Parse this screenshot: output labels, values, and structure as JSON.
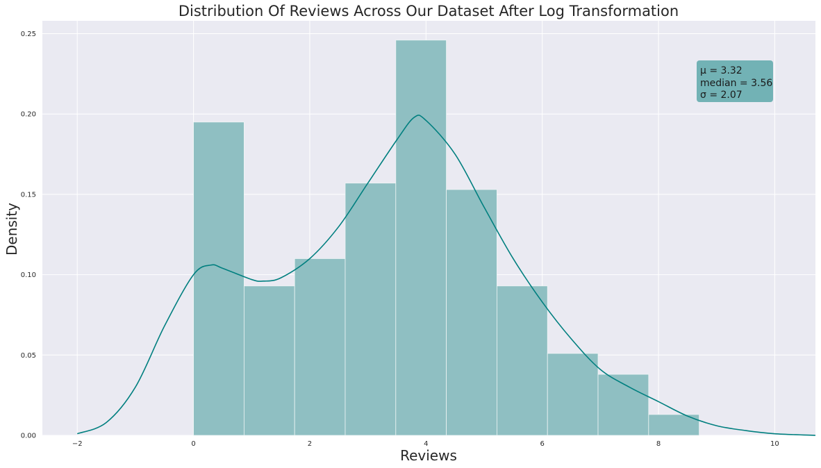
{
  "chart_data": {
    "type": "histogram",
    "title": "Distribution Of Reviews Across Our Dataset After Log Transformation",
    "xlabel": "Reviews",
    "ylabel": "Density",
    "xlim": [
      -2.6,
      10.7
    ],
    "ylim": [
      0,
      0.258
    ],
    "grid": true,
    "x_ticks": [
      -2,
      0,
      2,
      4,
      6,
      8,
      10
    ],
    "y_ticks": [
      0.0,
      0.05,
      0.1,
      0.15,
      0.2,
      0.25
    ],
    "colors": {
      "background": "#eaeaf2",
      "bar": "#8fbfc2",
      "line": "#007f7f",
      "stats_box": "#72b2b5"
    },
    "bars": [
      {
        "x0": 0.0,
        "x1": 0.87,
        "density": 0.195
      },
      {
        "x0": 0.87,
        "x1": 1.74,
        "density": 0.093
      },
      {
        "x0": 1.74,
        "x1": 2.61,
        "density": 0.11
      },
      {
        "x0": 2.61,
        "x1": 3.48,
        "density": 0.157
      },
      {
        "x0": 3.48,
        "x1": 4.35,
        "density": 0.246
      },
      {
        "x0": 4.35,
        "x1": 5.22,
        "density": 0.153
      },
      {
        "x0": 5.22,
        "x1": 6.09,
        "density": 0.093
      },
      {
        "x0": 6.09,
        "x1": 6.96,
        "density": 0.051
      },
      {
        "x0": 6.96,
        "x1": 7.83,
        "density": 0.038
      },
      {
        "x0": 7.83,
        "x1": 8.7,
        "density": 0.013
      }
    ],
    "kde": {
      "x": [
        -2.0,
        -1.5,
        -1.0,
        -0.5,
        0.0,
        0.3,
        0.5,
        1.0,
        1.2,
        1.5,
        2.0,
        2.5,
        3.0,
        3.5,
        3.8,
        4.0,
        4.5,
        5.0,
        5.5,
        6.0,
        6.5,
        7.0,
        7.5,
        8.0,
        8.5,
        9.0,
        9.5,
        10.0,
        10.7
      ],
      "y": [
        0.001,
        0.008,
        0.03,
        0.068,
        0.1,
        0.106,
        0.104,
        0.097,
        0.096,
        0.098,
        0.11,
        0.13,
        0.157,
        0.184,
        0.198,
        0.196,
        0.175,
        0.142,
        0.11,
        0.083,
        0.06,
        0.041,
        0.03,
        0.021,
        0.012,
        0.006,
        0.003,
        0.001,
        0.0
      ]
    },
    "stats_box": {
      "placement": "top-right",
      "lines": [
        "μ = 3.32",
        "median = 3.56",
        "σ = 2.07"
      ]
    }
  }
}
